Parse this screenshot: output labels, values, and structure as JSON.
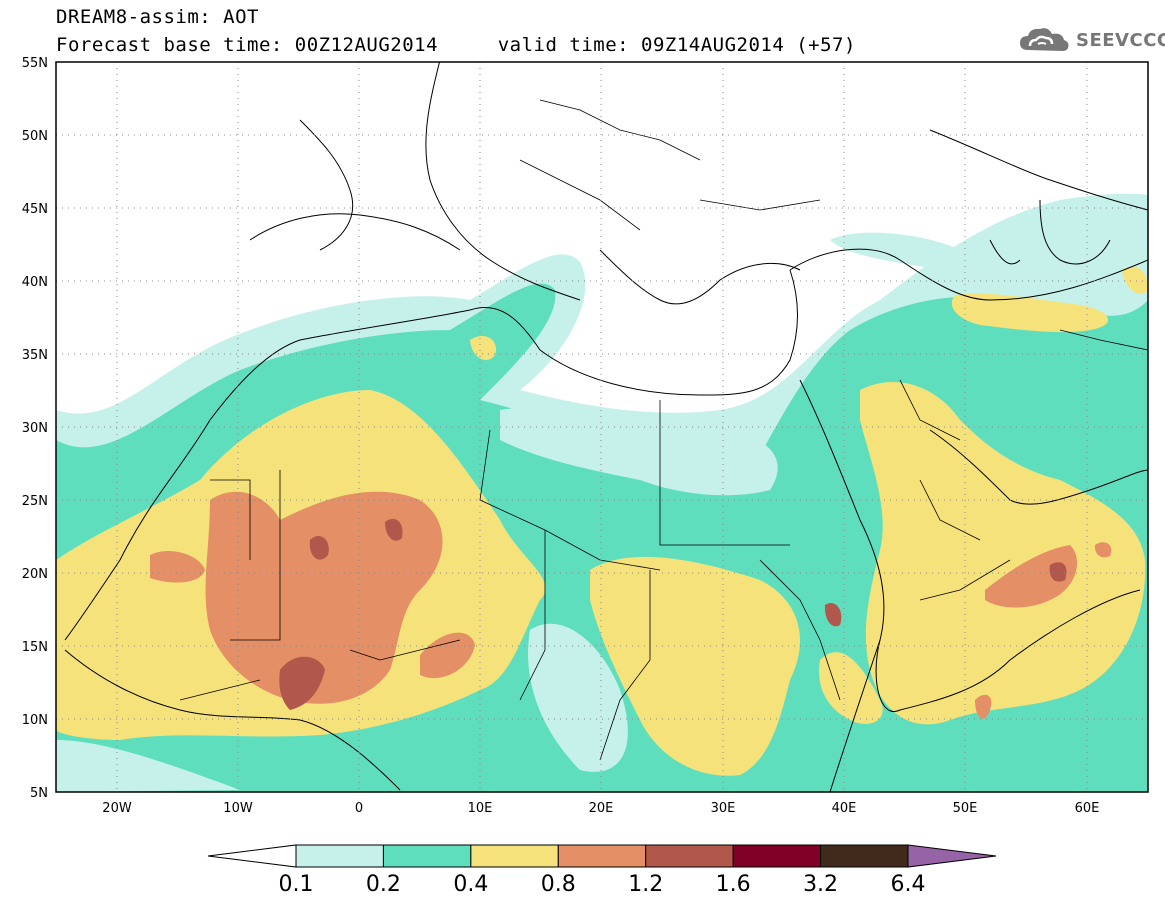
{
  "header": {
    "line1": "DREAM8-assim: AOT",
    "line2": "Forecast base time: 00Z12AUG2014     valid time: 09Z14AUG2014 (+57)"
  },
  "logo": {
    "icon": "cloud-icon",
    "text": "SEEVCCC"
  },
  "map": {
    "lat_labels": [
      "55N",
      "50N",
      "45N",
      "40N",
      "35N",
      "30N",
      "25N",
      "20N",
      "15N",
      "10N",
      "5N"
    ],
    "lon_labels": [
      "20W",
      "10W",
      "0",
      "10E",
      "20E",
      "30E",
      "40E",
      "50E",
      "60E"
    ],
    "lon_range": [
      -25,
      65
    ],
    "lat_range": [
      5,
      55
    ]
  },
  "colorbar": {
    "labels": [
      "0.1",
      "0.2",
      "0.4",
      "0.8",
      "1.2",
      "1.6",
      "3.2",
      "6.4"
    ],
    "colors": [
      "#ffffff",
      "#c6f1ea",
      "#5fdebe",
      "#f5e27a",
      "#e58f66",
      "#b2574b",
      "#800028",
      "#402a1b",
      "#9664a6"
    ]
  },
  "colors": {
    "class_0.1_0.2": "#c6f1ea",
    "class_0.2_0.4": "#5fdebe",
    "class_0.4_0.8": "#f5e27a",
    "class_0.8_1.2": "#e58f66",
    "class_1.2_1.6": "#b2574b",
    "class_1.6_3.2": "#800028"
  }
}
